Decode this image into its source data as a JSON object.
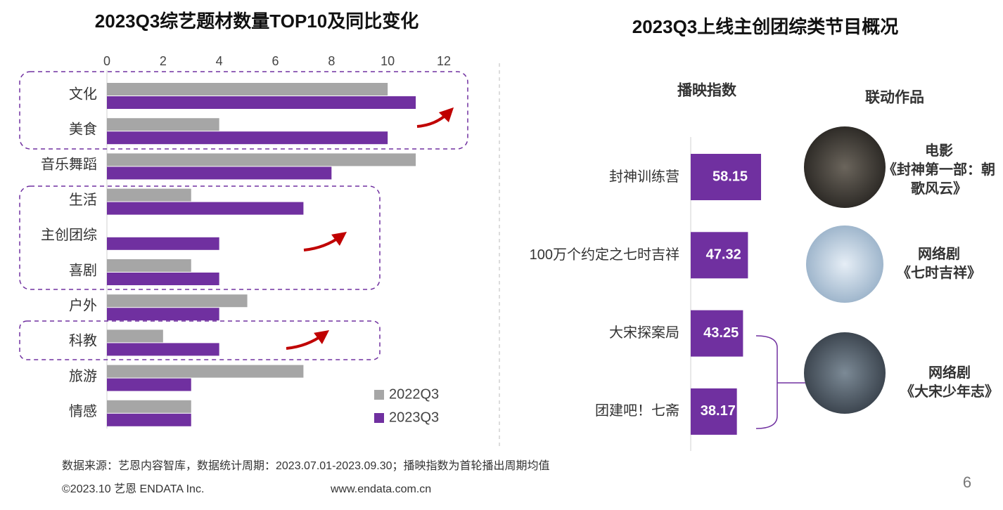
{
  "chart_data": [
    {
      "type": "bar",
      "orientation": "horizontal",
      "title": "2023Q3综艺题材数量TOP10及同比变化",
      "categories": [
        "文化",
        "美食",
        "音乐舞蹈",
        "生活",
        "主创团综",
        "喜剧",
        "户外",
        "科教",
        "旅游",
        "情感"
      ],
      "series": [
        {
          "name": "2022Q3",
          "color": "#a6a6a6",
          "values": [
            10,
            4,
            11,
            3,
            null,
            3,
            5,
            2,
            7,
            3
          ]
        },
        {
          "name": "2023Q3",
          "color": "#7030a0",
          "values": [
            11,
            10,
            8,
            7,
            4,
            4,
            4,
            4,
            3,
            3
          ]
        }
      ],
      "xlim": [
        0,
        12
      ],
      "xticks": [
        0,
        2,
        4,
        6,
        8,
        10,
        12
      ],
      "grid": false,
      "legend": "lower right"
    },
    {
      "type": "bar",
      "orientation": "horizontal",
      "title": "2023Q3上线主创团综类节目概况",
      "subtitle": "播映指数",
      "categories": [
        "封神训练营",
        "100万个约定之七时吉祥",
        "大宋探案局",
        "团建吧！七斋"
      ],
      "values": [
        58.15,
        47.32,
        43.25,
        38.17
      ],
      "color": "#7030a0",
      "data_labels": true
    }
  ],
  "linked_works": {
    "title": "联动作品",
    "items": [
      {
        "type": "电影",
        "name": "《封神第一部：朝歌风云》"
      },
      {
        "type": "网络剧",
        "name": "《七时吉祥》"
      },
      {
        "type": "网络剧",
        "name": "《大宋少年志》"
      }
    ]
  },
  "footer": {
    "source": "数据来源：艺恩内容智库，数据统计周期：2023.07.01-2023.09.30；播映指数为首轮播出周期均值",
    "copyright": "©2023.10 艺恩 ENDATA Inc.",
    "url": "www.endata.com.cn",
    "page": "6"
  }
}
